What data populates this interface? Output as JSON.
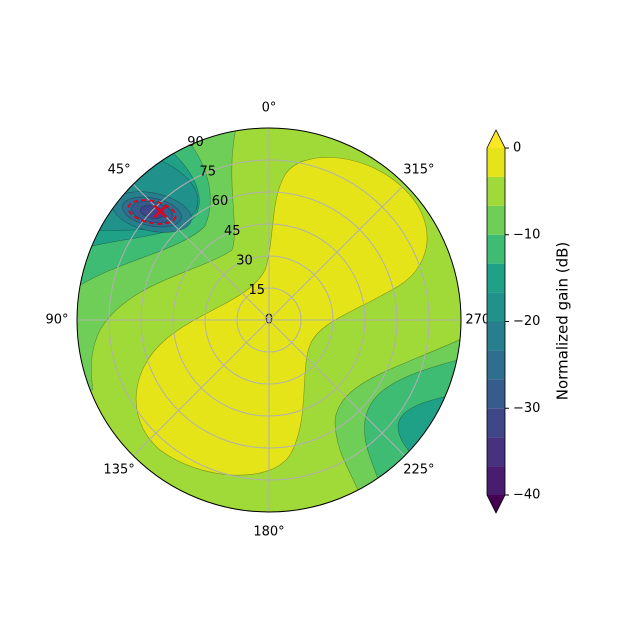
{
  "chart_data": {
    "type": "polar_contour",
    "theta_ticks": [
      {
        "value": 0,
        "label": "0°"
      },
      {
        "value": 45,
        "label": "45°"
      },
      {
        "value": 90,
        "label": "90°"
      },
      {
        "value": 135,
        "label": "135°"
      },
      {
        "value": 180,
        "label": "180°"
      },
      {
        "value": 225,
        "label": "225°"
      },
      {
        "value": 270,
        "label": "270°"
      },
      {
        "value": 315,
        "label": "315°"
      }
    ],
    "rlim": [
      0,
      90
    ],
    "rticks": [
      0,
      15,
      30,
      45,
      60,
      75,
      90
    ],
    "grid": true,
    "levels": [
      -40,
      -36.67,
      -33.33,
      -30,
      -26.67,
      -23.33,
      -20,
      -16.67,
      -13.33,
      -10,
      -6.67,
      -3.33,
      0
    ],
    "colors": [
      "#481c6e",
      "#46327e",
      "#3f4788",
      "#365c8d",
      "#2e6e8e",
      "#277f8e",
      "#21918c",
      "#1fa187",
      "#3fbc73",
      "#6ece58",
      "#a0da39",
      "#e5e419"
    ],
    "under_color": "#440154",
    "over_color": "#fde725",
    "colorbar": {
      "label": "Normalized gain (dB)",
      "lim": [
        -40,
        0
      ],
      "ticks": [
        0,
        {
          "value": -10,
          "label": "−10"
        },
        {
          "value": -20,
          "label": "−20"
        },
        {
          "value": -30,
          "label": "−30"
        },
        {
          "value": -40,
          "label": "−40"
        }
      ]
    },
    "marker": {
      "theta": 45,
      "r": 72,
      "color": "#e8001c"
    }
  }
}
